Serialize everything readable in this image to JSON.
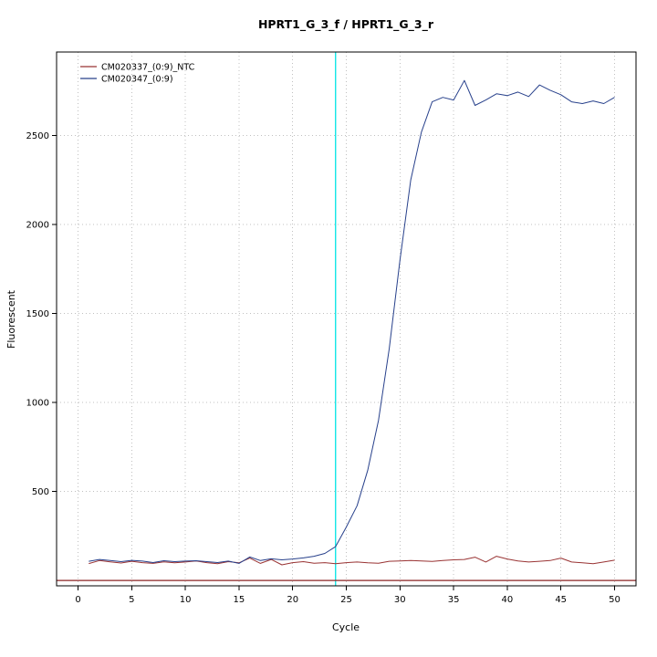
{
  "title": "HPRT1_G_3_f / HPRT1_G_3_r",
  "chart_data": {
    "type": "line",
    "title": "HPRT1_G_3_f / HPRT1_G_3_r",
    "xlabel": "Cycle",
    "ylabel": "Fluorescent",
    "xlim": [
      -2,
      52
    ],
    "ylim": [
      -30,
      2970
    ],
    "xticks": [
      0,
      5,
      10,
      15,
      20,
      25,
      30,
      35,
      40,
      45,
      50
    ],
    "yticks": [
      500,
      1000,
      1500,
      2000,
      2500
    ],
    "grid": "dotted",
    "grid_color": "#c0c0c0",
    "legend_position": "top-left",
    "threshold_line": {
      "y": 0,
      "color": "#8b2323"
    },
    "vline": {
      "x": 24,
      "color": "#00e5e5"
    },
    "x": [
      1,
      2,
      3,
      4,
      5,
      6,
      7,
      8,
      9,
      10,
      11,
      12,
      13,
      14,
      15,
      16,
      17,
      18,
      19,
      20,
      21,
      22,
      23,
      24,
      25,
      26,
      27,
      28,
      29,
      30,
      31,
      32,
      33,
      34,
      35,
      36,
      37,
      38,
      39,
      40,
      41,
      42,
      43,
      44,
      45,
      46,
      47,
      48,
      49,
      50
    ],
    "series": [
      {
        "name": "CM020337_(0:9)_NTC",
        "color": "#993333",
        "values": [
          95,
          112,
          105,
          98,
          108,
          100,
          96,
          105,
          99,
          104,
          110,
          100,
          94,
          106,
          99,
          126,
          96,
          118,
          88,
          100,
          106,
          97,
          100,
          94,
          100,
          104,
          99,
          97,
          108,
          110,
          112,
          110,
          107,
          112,
          116,
          118,
          131,
          104,
          136,
          121,
          110,
          104,
          108,
          112,
          126,
          104,
          99,
          94,
          104,
          114
        ]
      },
      {
        "name": "CM020347_(0:9)",
        "color": "#27408b",
        "values": [
          108,
          118,
          112,
          106,
          113,
          109,
          101,
          111,
          106,
          109,
          111,
          106,
          101,
          109,
          96,
          132,
          112,
          122,
          116,
          121,
          127,
          136,
          152,
          190,
          300,
          420,
          620,
          900,
          1300,
          1800,
          2250,
          2520,
          2690,
          2715,
          2700,
          2810,
          2670,
          2700,
          2735,
          2725,
          2745,
          2720,
          2785,
          2755,
          2730,
          2690,
          2680,
          2695,
          2680,
          2715
        ]
      }
    ]
  }
}
